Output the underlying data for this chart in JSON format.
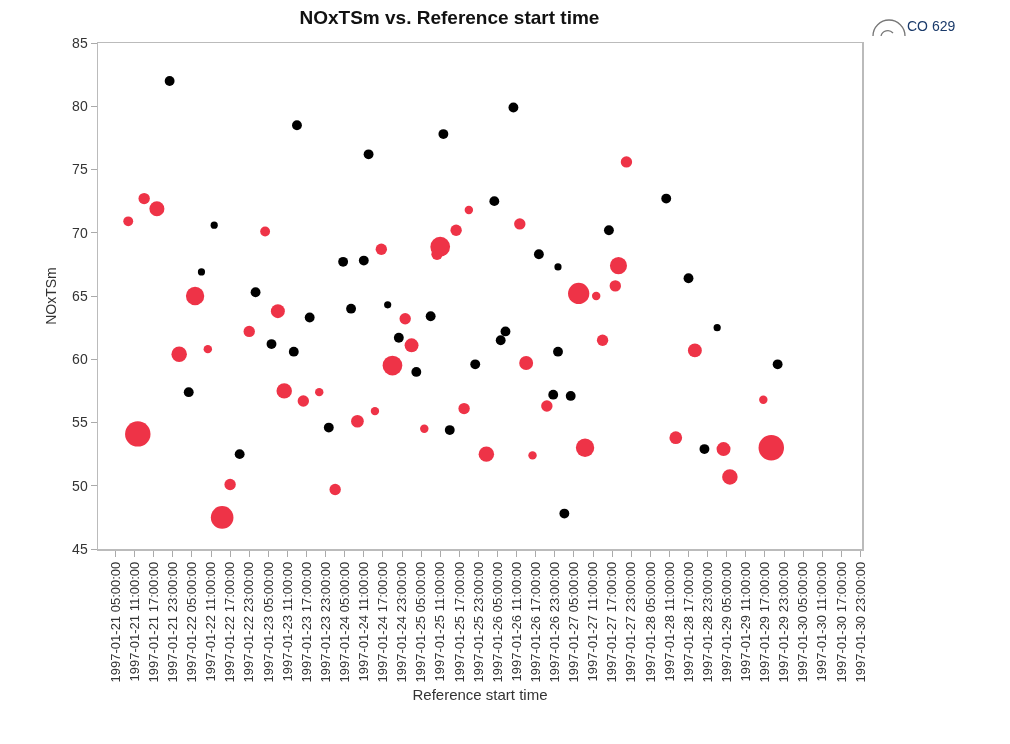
{
  "chart_data": {
    "type": "bubble",
    "title": "NOxTSm vs. Reference start time",
    "xlabel": "Reference start time",
    "ylabel": "NOxTSm",
    "annotations": [
      "CO 629"
    ],
    "grid": false,
    "marker": "circle",
    "xlim": [
      "1997-01-20T23:30",
      "1997-01-30T23:30"
    ],
    "xticks": [
      {
        "value": "1997-01-21T05:00",
        "label": "1997-01-21 05:00:00"
      },
      {
        "value": "1997-01-21T11:00",
        "label": "1997-01-21 11:00:00"
      },
      {
        "value": "1997-01-21T17:00",
        "label": "1997-01-21 17:00:00"
      },
      {
        "value": "1997-01-21T23:00",
        "label": "1997-01-21 23:00:00"
      },
      {
        "value": "1997-01-22T05:00",
        "label": "1997-01-22 05:00:00"
      },
      {
        "value": "1997-01-22T11:00",
        "label": "1997-01-22 11:00:00"
      },
      {
        "value": "1997-01-22T17:00",
        "label": "1997-01-22 17:00:00"
      },
      {
        "value": "1997-01-22T23:00",
        "label": "1997-01-22 23:00:00"
      },
      {
        "value": "1997-01-23T05:00",
        "label": "1997-01-23 05:00:00"
      },
      {
        "value": "1997-01-23T11:00",
        "label": "1997-01-23 11:00:00"
      },
      {
        "value": "1997-01-23T17:00",
        "label": "1997-01-23 17:00:00"
      },
      {
        "value": "1997-01-23T23:00",
        "label": "1997-01-23 23:00:00"
      },
      {
        "value": "1997-01-24T05:00",
        "label": "1997-01-24 05:00:00"
      },
      {
        "value": "1997-01-24T11:00",
        "label": "1997-01-24 11:00:00"
      },
      {
        "value": "1997-01-24T17:00",
        "label": "1997-01-24 17:00:00"
      },
      {
        "value": "1997-01-24T23:00",
        "label": "1997-01-24 23:00:00"
      },
      {
        "value": "1997-01-25T05:00",
        "label": "1997-01-25 05:00:00"
      },
      {
        "value": "1997-01-25T11:00",
        "label": "1997-01-25 11:00:00"
      },
      {
        "value": "1997-01-25T17:00",
        "label": "1997-01-25 17:00:00"
      },
      {
        "value": "1997-01-25T23:00",
        "label": "1997-01-25 23:00:00"
      },
      {
        "value": "1997-01-26T05:00",
        "label": "1997-01-26 05:00:00"
      },
      {
        "value": "1997-01-26T11:00",
        "label": "1997-01-26 11:00:00"
      },
      {
        "value": "1997-01-26T17:00",
        "label": "1997-01-26 17:00:00"
      },
      {
        "value": "1997-01-26T23:00",
        "label": "1997-01-26 23:00:00"
      },
      {
        "value": "1997-01-27T05:00",
        "label": "1997-01-27 05:00:00"
      },
      {
        "value": "1997-01-27T11:00",
        "label": "1997-01-27 11:00:00"
      },
      {
        "value": "1997-01-27T17:00",
        "label": "1997-01-27 17:00:00"
      },
      {
        "value": "1997-01-27T23:00",
        "label": "1997-01-27 23:00:00"
      },
      {
        "value": "1997-01-28T05:00",
        "label": "1997-01-28 05:00:00"
      },
      {
        "value": "1997-01-28T11:00",
        "label": "1997-01-28 11:00:00"
      },
      {
        "value": "1997-01-28T17:00",
        "label": "1997-01-28 17:00:00"
      },
      {
        "value": "1997-01-28T23:00",
        "label": "1997-01-28 23:00:00"
      },
      {
        "value": "1997-01-29T05:00",
        "label": "1997-01-29 05:00:00"
      },
      {
        "value": "1997-01-29T11:00",
        "label": "1997-01-29 11:00:00"
      },
      {
        "value": "1997-01-29T17:00",
        "label": "1997-01-29 17:00:00"
      },
      {
        "value": "1997-01-29T23:00",
        "label": "1997-01-29 23:00:00"
      },
      {
        "value": "1997-01-30T05:00",
        "label": "1997-01-30 05:00:00"
      },
      {
        "value": "1997-01-30T11:00",
        "label": "1997-01-30 11:00:00"
      },
      {
        "value": "1997-01-30T17:00",
        "label": "1997-01-30 17:00:00"
      },
      {
        "value": "1997-01-30T23:00",
        "label": "1997-01-30 23:00:00"
      }
    ],
    "ylim": [
      45,
      85
    ],
    "yticks": [
      45,
      50,
      55,
      60,
      65,
      70,
      75,
      80,
      85
    ],
    "series": [
      {
        "color": "#000000",
        "x": [
          "1997-01-21T22:00",
          "1997-01-22T04:00",
          "1997-01-22T08:00",
          "1997-01-22T12:00",
          "1997-01-22T20:00",
          "1997-01-23T01:00",
          "1997-01-23T06:00",
          "1997-01-23T13:00",
          "1997-01-23T14:00",
          "1997-01-23T18:00",
          "1997-01-24T00:00",
          "1997-01-24T04:30",
          "1997-01-24T07:00",
          "1997-01-24T11:00",
          "1997-01-24T12:30",
          "1997-01-24T18:30",
          "1997-01-24T22:00",
          "1997-01-25T03:30",
          "1997-01-25T08:00",
          "1997-01-25T12:00",
          "1997-01-25T14:00",
          "1997-01-25T22:00",
          "1997-01-26T04:00",
          "1997-01-26T06:00",
          "1997-01-26T07:30",
          "1997-01-26T10:00",
          "1997-01-26T18:00",
          "1997-01-26T22:30",
          "1997-01-27T00:00",
          "1997-01-27T00:00",
          "1997-01-27T02:00",
          "1997-01-27T04:00",
          "1997-01-27T16:00",
          "1997-01-28T10:00",
          "1997-01-28T17:00",
          "1997-01-28T22:00",
          "1997-01-29T02:00",
          "1997-01-29T21:00"
        ],
        "values": [
          82.0,
          57.4,
          66.9,
          70.6,
          52.5,
          65.3,
          61.2,
          60.6,
          78.5,
          63.3,
          54.6,
          67.7,
          64.0,
          67.8,
          76.2,
          64.3,
          61.7,
          59.0,
          63.4,
          77.8,
          54.4,
          59.6,
          72.5,
          61.5,
          62.2,
          79.9,
          68.3,
          57.2,
          60.6,
          67.3,
          47.8,
          57.1,
          70.2,
          72.7,
          66.4,
          52.9,
          62.5,
          59.6
        ],
        "sizes": [
          0.15,
          0.15,
          0.08,
          0.08,
          0.15,
          0.15,
          0.15,
          0.15,
          0.15,
          0.15,
          0.15,
          0.15,
          0.15,
          0.15,
          0.15,
          0.08,
          0.15,
          0.15,
          0.15,
          0.15,
          0.15,
          0.15,
          0.15,
          0.15,
          0.15,
          0.15,
          0.15,
          0.15,
          0.15,
          0.08,
          0.15,
          0.15,
          0.15,
          0.15,
          0.15,
          0.15,
          0.08,
          0.15
        ]
      },
      {
        "color": "#ee3347",
        "x": [
          "1997-01-21T09:00",
          "1997-01-21T12:00",
          "1997-01-21T14:00",
          "1997-01-21T18:00",
          "1997-01-22T01:00",
          "1997-01-22T06:00",
          "1997-01-22T10:00",
          "1997-01-22T14:30",
          "1997-01-22T17:00",
          "1997-01-22T23:00",
          "1997-01-23T04:00",
          "1997-01-23T08:00",
          "1997-01-23T10:00",
          "1997-01-23T16:00",
          "1997-01-23T21:00",
          "1997-01-24T02:00",
          "1997-01-24T09:00",
          "1997-01-24T14:30",
          "1997-01-24T16:30",
          "1997-01-24T20:00",
          "1997-01-25T00:00",
          "1997-01-25T02:00",
          "1997-01-25T06:00",
          "1997-01-25T10:00",
          "1997-01-25T11:00",
          "1997-01-25T16:00",
          "1997-01-25T18:30",
          "1997-01-25T20:00",
          "1997-01-26T01:30",
          "1997-01-26T12:00",
          "1997-01-26T14:00",
          "1997-01-26T16:00",
          "1997-01-26T20:30",
          "1997-01-27T06:30",
          "1997-01-27T08:30",
          "1997-01-27T12:00",
          "1997-01-27T14:00",
          "1997-01-27T18:00",
          "1997-01-27T19:00",
          "1997-01-27T21:30",
          "1997-01-28T13:00",
          "1997-01-28T19:00",
          "1997-01-29T04:00",
          "1997-01-29T06:00",
          "1997-01-29T16:30",
          "1997-01-29T19:00"
        ],
        "values": [
          70.9,
          54.1,
          72.7,
          71.9,
          60.4,
          65.0,
          60.8,
          47.5,
          50.1,
          62.2,
          70.1,
          63.8,
          57.5,
          56.7,
          57.4,
          49.7,
          55.1,
          55.9,
          68.7,
          59.5,
          63.2,
          61.1,
          54.5,
          68.3,
          68.9,
          70.2,
          56.1,
          71.8,
          52.5,
          70.7,
          59.7,
          52.4,
          56.3,
          65.2,
          53.0,
          65.0,
          61.5,
          65.8,
          67.4,
          75.6,
          53.8,
          60.7,
          52.9,
          50.7,
          56.8,
          53.0
        ],
        "sizes": [
          0.15,
          1,
          0.2,
          0.35,
          0.37,
          0.52,
          0.11,
          0.79,
          0.2,
          0.2,
          0.15,
          0.3,
          0.37,
          0.2,
          0.11,
          0.2,
          0.25,
          0.11,
          0.2,
          0.6,
          0.2,
          0.3,
          0.11,
          0.2,
          0.6,
          0.2,
          0.2,
          0.11,
          0.37,
          0.2,
          0.3,
          0.11,
          0.2,
          0.7,
          0.52,
          0.11,
          0.2,
          0.2,
          0.45,
          0.2,
          0.25,
          0.3,
          0.3,
          0.37,
          0.11,
          1
        ]
      }
    ]
  }
}
